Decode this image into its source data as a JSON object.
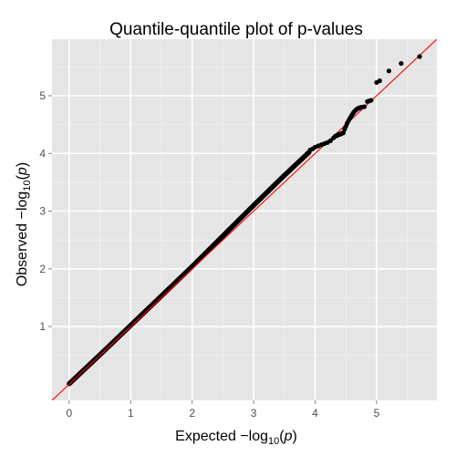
{
  "chart_data": {
    "type": "scatter",
    "title": "Quantile-quantile plot of p-values",
    "xlabel": {
      "prefix": "Expected ",
      "minus": "−",
      "log": "log",
      "sub": "10",
      "open": "(",
      "var": "p",
      "close": ")"
    },
    "ylabel": {
      "prefix": "Observed ",
      "minus": "−",
      "log": "log",
      "sub": "10",
      "open": "(",
      "var": "p",
      "close": ")"
    },
    "xlim": [
      -0.28,
      5.98
    ],
    "ylim": [
      -0.28,
      5.98
    ],
    "x_ticks": [
      0,
      1,
      2,
      3,
      4,
      5
    ],
    "y_ticks": [
      1,
      2,
      3,
      4,
      5
    ],
    "grid": true,
    "background_color": "#e5e5e5",
    "point_color": "#000000",
    "reference_line": {
      "slope": 1,
      "intercept": 0,
      "color": "#ff0000"
    },
    "dense_band": {
      "x": [
        0,
        0.5,
        1,
        1.5,
        2,
        2.5,
        3,
        3.5,
        3.9
      ],
      "y": [
        0.01,
        0.51,
        1.02,
        1.53,
        2.04,
        2.57,
        3.1,
        3.62,
        4.02
      ]
    },
    "series": [
      {
        "x": [
          3.92,
          3.96,
          4.0,
          4.05,
          4.1,
          4.15,
          4.2,
          4.25,
          4.3,
          4.33,
          4.36,
          4.38,
          4.4,
          4.42,
          4.44,
          4.46,
          4.48,
          4.5,
          4.52,
          4.54,
          4.56,
          4.58,
          4.6,
          4.62,
          4.64,
          4.66,
          4.68,
          4.7,
          4.72,
          4.75,
          4.8,
          4.85,
          4.88,
          4.91,
          5.0,
          5.05,
          5.2,
          5.4,
          5.7
        ],
        "y": [
          4.06,
          4.08,
          4.11,
          4.13,
          4.15,
          4.17,
          4.19,
          4.22,
          4.27,
          4.3,
          4.31,
          4.33,
          4.33,
          4.34,
          4.35,
          4.36,
          4.42,
          4.47,
          4.52,
          4.56,
          4.6,
          4.63,
          4.67,
          4.7,
          4.73,
          4.75,
          4.77,
          4.78,
          4.79,
          4.8,
          4.81,
          4.9,
          4.91,
          4.92,
          5.23,
          5.26,
          5.43,
          5.56,
          5.68
        ]
      }
    ]
  }
}
